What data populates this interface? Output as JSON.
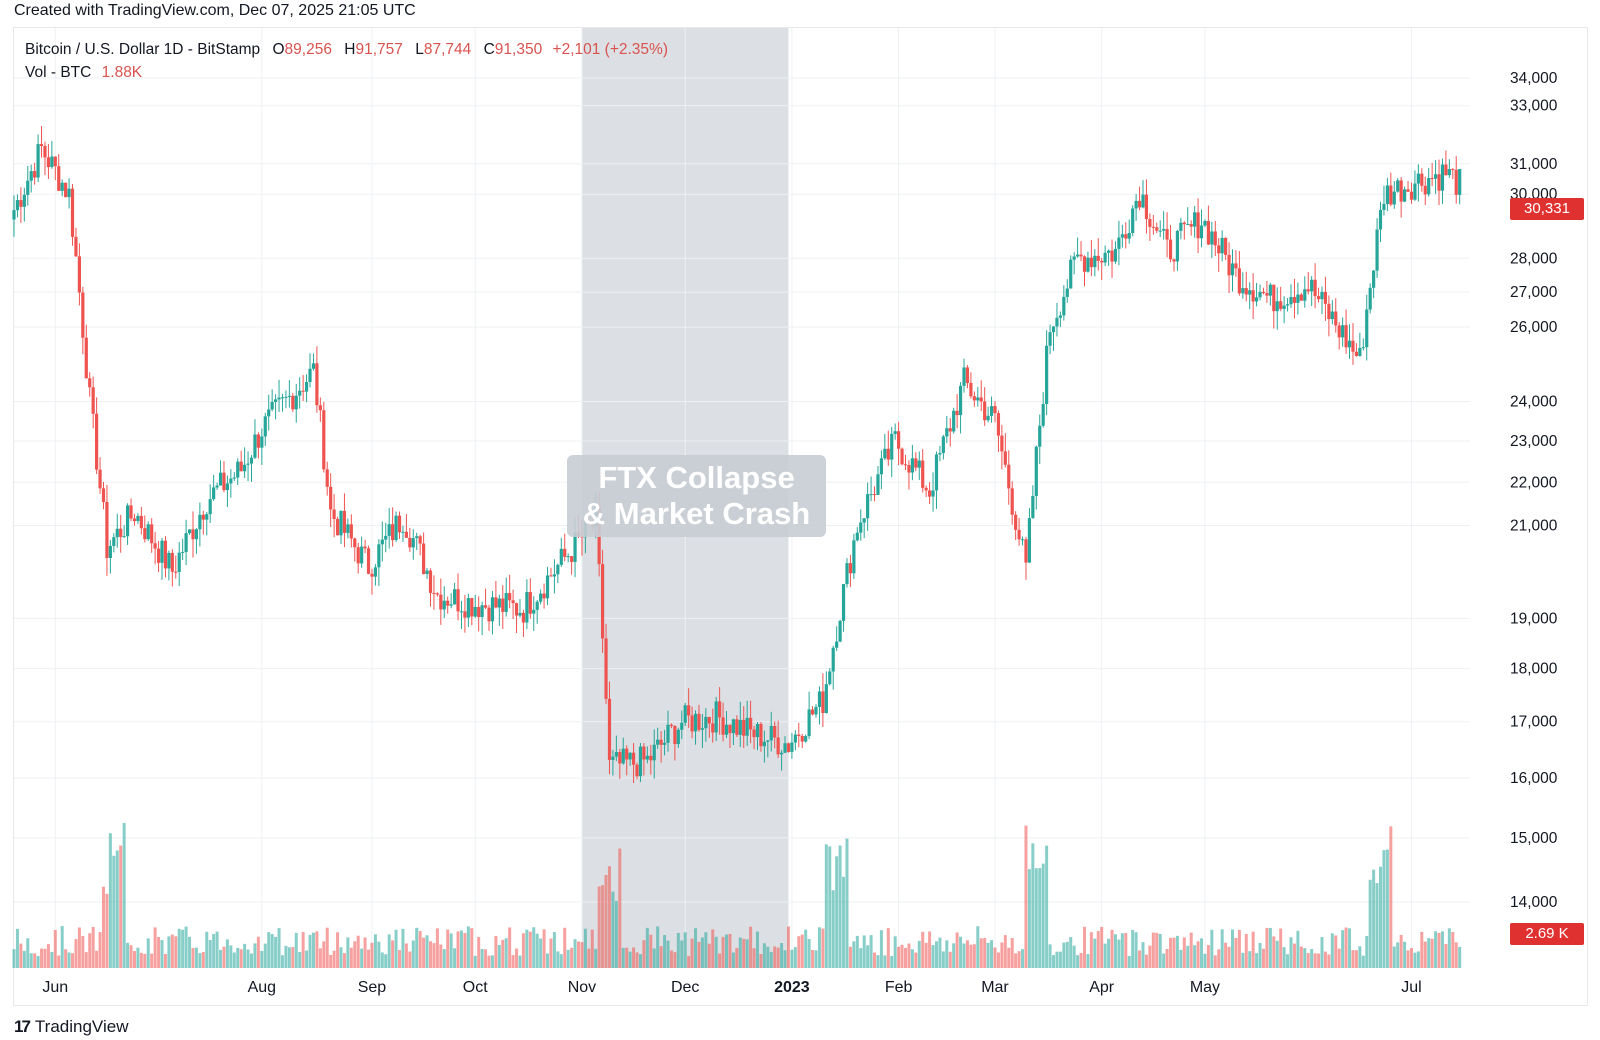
{
  "header": {
    "created_text": "Created with TradingView.com, Dec 07, 2025 21:05 UTC"
  },
  "legend": {
    "symbol": "Bitcoin / U.S. Dollar 1D - BitStamp",
    "open_label": "O",
    "open_value": "89,256",
    "high_label": "H",
    "high_value": "91,757",
    "low_label": "L",
    "low_value": "87,744",
    "close_label": "C",
    "close_value": "91,350",
    "change": "+2,101 (+2.35%)",
    "volume_label": "Vol - BTC",
    "volume_value": "1.88K"
  },
  "annotation": {
    "line1": "FTX Collapse",
    "line2": "& Market Crash"
  },
  "price_tag": "30,331",
  "volume_tag": "2.69 K",
  "footer": {
    "logo_text": "TradingView"
  },
  "colors": {
    "up": "#26a69a",
    "down": "#ef5350",
    "highlight": "#d6d9de",
    "grid": "#eef0f3"
  },
  "chart_data": {
    "type": "candlestick",
    "title": "Bitcoin / U.S. Dollar 1D - BitStamp",
    "ylabel": "",
    "xlabel": "",
    "y_scale": "log",
    "y_ticks": [
      14000,
      15000,
      16000,
      17000,
      18000,
      19000,
      21000,
      22000,
      23000,
      24000,
      26000,
      27000,
      28000,
      30000,
      31000,
      33000,
      34000
    ],
    "y_tick_labels": [
      "14,000",
      "15,000",
      "16,000",
      "17,000",
      "18,000",
      "19,000",
      "21,000",
      "22,000",
      "23,000",
      "24,000",
      "26,000",
      "27,000",
      "28,000",
      "30,000",
      "31,000",
      "33,000",
      "34,000"
    ],
    "x_ticks": [
      "Jun",
      "Aug",
      "Sep",
      "Oct",
      "Nov",
      "Dec",
      "2023",
      "Feb",
      "Mar",
      "Apr",
      "May",
      "Jul"
    ],
    "highlight_range": [
      "2022-11-01",
      "2022-12-31"
    ],
    "price_path": [
      [
        "2022-05-20",
        29500
      ],
      [
        "2022-05-28",
        31500
      ],
      [
        "2022-06-05",
        30000
      ],
      [
        "2022-06-11",
        24000
      ],
      [
        "2022-06-16",
        20500
      ],
      [
        "2022-06-24",
        21300
      ],
      [
        "2022-07-05",
        20000
      ],
      [
        "2022-07-15",
        21600
      ],
      [
        "2022-07-25",
        22300
      ],
      [
        "2022-07-31",
        23300
      ],
      [
        "2022-08-10",
        24300
      ],
      [
        "2022-08-15",
        24800
      ],
      [
        "2022-08-20",
        21300
      ],
      [
        "2022-08-31",
        20100
      ],
      [
        "2022-09-10",
        21200
      ],
      [
        "2022-09-20",
        19500
      ],
      [
        "2022-10-01",
        19300
      ],
      [
        "2022-10-15",
        19200
      ],
      [
        "2022-10-25",
        20100
      ],
      [
        "2022-11-05",
        21100
      ],
      [
        "2022-11-09",
        16200
      ],
      [
        "2022-11-20",
        16300
      ],
      [
        "2022-11-30",
        17000
      ],
      [
        "2022-12-10",
        17100
      ],
      [
        "2022-12-20",
        16800
      ],
      [
        "2022-12-31",
        16600
      ],
      [
        "2023-01-10",
        17400
      ],
      [
        "2023-01-20",
        21000
      ],
      [
        "2023-01-31",
        23000
      ],
      [
        "2023-02-10",
        21800
      ],
      [
        "2023-02-20",
        24500
      ],
      [
        "2023-03-01",
        23500
      ],
      [
        "2023-03-10",
        20000
      ],
      [
        "2023-03-17",
        26000
      ],
      [
        "2023-03-25",
        28000
      ],
      [
        "2023-04-05",
        28200
      ],
      [
        "2023-04-12",
        30100
      ],
      [
        "2023-04-20",
        28200
      ],
      [
        "2023-04-30",
        29200
      ],
      [
        "2023-05-10",
        27500
      ],
      [
        "2023-05-20",
        26800
      ],
      [
        "2023-05-31",
        27200
      ],
      [
        "2023-06-10",
        25800
      ],
      [
        "2023-06-15",
        25100
      ],
      [
        "2023-06-22",
        30000
      ],
      [
        "2023-07-01",
        30400
      ],
      [
        "2023-07-10",
        30700
      ],
      [
        "2023-07-14",
        30331
      ]
    ],
    "volume_peaks": [
      [
        "2022-06-18",
        "high"
      ],
      [
        "2022-11-09",
        "high"
      ],
      [
        "2023-01-14",
        "high"
      ],
      [
        "2023-03-13",
        "high"
      ],
      [
        "2023-06-21",
        "high"
      ]
    ]
  }
}
